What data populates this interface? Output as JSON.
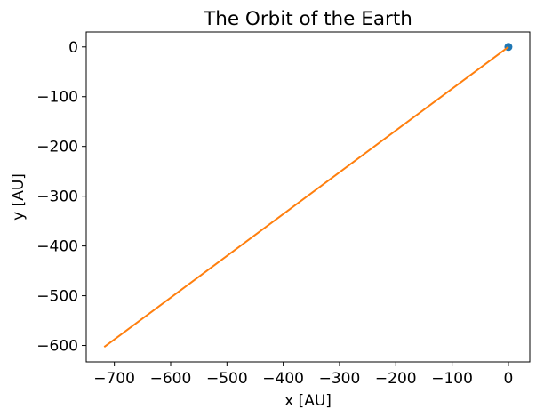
{
  "chart_data": {
    "type": "line",
    "title": "The Orbit of the Earth",
    "xlabel": "x [AU]",
    "ylabel": "y [AU]",
    "xlim": [
      -750,
      38
    ],
    "ylim": [
      -633,
      30
    ],
    "xticks": [
      -700,
      -600,
      -500,
      -400,
      -300,
      -200,
      -100,
      0
    ],
    "yticks": [
      0,
      -100,
      -200,
      -300,
      -400,
      -500,
      -600
    ],
    "grid": false,
    "series": [
      {
        "kind": "line",
        "color": "#ff7f0e",
        "x": [
          -718,
          0
        ],
        "y": [
          -603,
          0
        ]
      },
      {
        "kind": "scatter",
        "color": "#1f77b4",
        "x": [
          0
        ],
        "y": [
          0
        ]
      }
    ]
  }
}
